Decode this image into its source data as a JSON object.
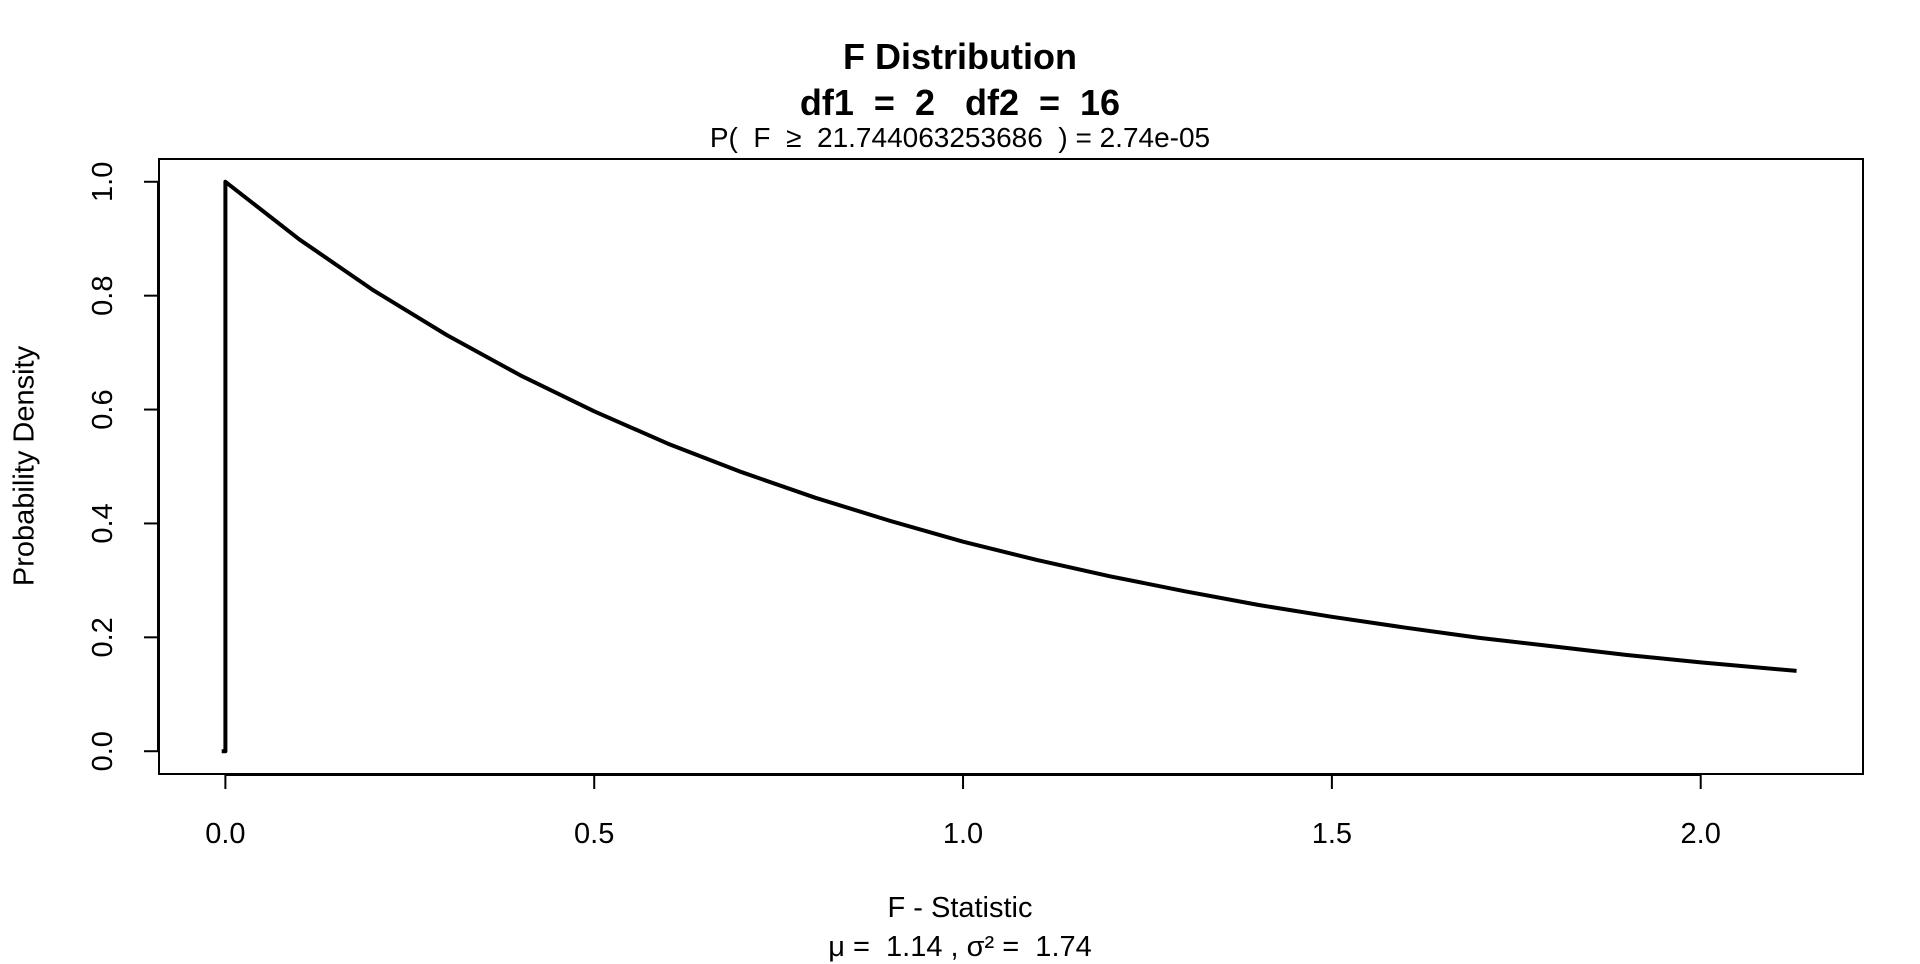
{
  "chart_data": {
    "type": "line",
    "title": "F Distribution",
    "subtitle": "df1  =  2   df2  =  16",
    "probability_text": "P(  F  ≥  21.744063253686  ) = 2.74e-05",
    "xlabel": "F - Statistic",
    "stats_text": "μ =  1.14 , σ² =  1.74",
    "ylabel": "Probability Density",
    "xlim": [
      -0.09,
      2.22
    ],
    "ylim": [
      -0.04,
      1.04
    ],
    "x_ticks": [
      0.0,
      0.5,
      1.0,
      1.5,
      2.0
    ],
    "x_tick_labels": [
      "0.0",
      "0.5",
      "1.0",
      "1.5",
      "2.0"
    ],
    "y_ticks": [
      0.0,
      0.2,
      0.4,
      0.6,
      0.8,
      1.0
    ],
    "y_tick_labels": [
      "0.0",
      "0.2",
      "0.4",
      "0.6",
      "0.8",
      "1.0"
    ],
    "grid": false,
    "line_color": "#000000",
    "series": [
      {
        "x": [
          -0.005,
          0.0,
          0.0,
          0.1,
          0.2,
          0.3,
          0.4,
          0.5,
          0.6,
          0.7,
          0.8,
          0.9,
          1.0,
          1.1,
          1.2,
          1.3,
          1.4,
          1.5,
          1.6,
          1.7,
          1.8,
          1.9,
          2.0,
          2.13
        ],
        "y": [
          0.0,
          0.0,
          1.0,
          0.899,
          0.81,
          0.731,
          0.66,
          0.597,
          0.54,
          0.49,
          0.445,
          0.405,
          0.368,
          0.336,
          0.307,
          0.281,
          0.257,
          0.236,
          0.217,
          0.199,
          0.184,
          0.169,
          0.156,
          0.141
        ]
      }
    ]
  }
}
